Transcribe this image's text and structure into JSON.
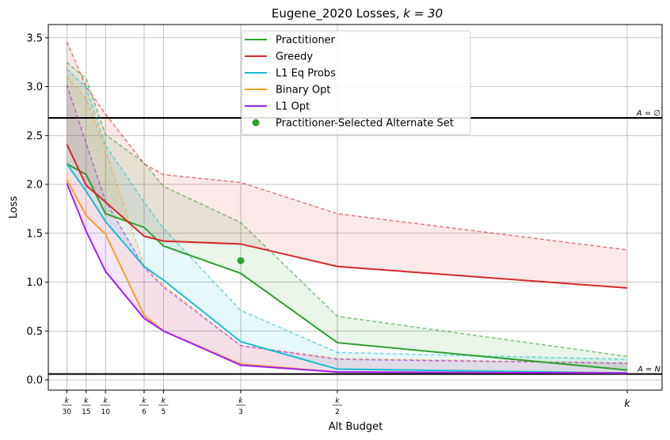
{
  "chart_data": {
    "type": "line",
    "title": "Eugene_2020 Losses, k = 30",
    "title_plain": "Eugene_2020 Losses, ",
    "title_math": "k = 30",
    "xlabel": "Alt Budget",
    "ylabel": "Loss",
    "ylim": [
      -0.1,
      3.6
    ],
    "grid": true,
    "legend_position": "top-center",
    "x_ticks": [
      {
        "x": 1,
        "label": "k/30"
      },
      {
        "x": 2,
        "label": "k/15"
      },
      {
        "x": 3,
        "label": "k/10"
      },
      {
        "x": 5,
        "label": "k/6"
      },
      {
        "x": 6,
        "label": "k/5"
      },
      {
        "x": 10,
        "label": "k/3"
      },
      {
        "x": 15,
        "label": "k/2"
      },
      {
        "x": 30,
        "label": "k"
      }
    ],
    "y_ticks": [
      0.0,
      0.5,
      1.0,
      1.5,
      2.0,
      2.5,
      3.0,
      3.5
    ],
    "y_tick_labels": [
      "0.0",
      "0.5",
      "1.0",
      "1.5",
      "2.0",
      "2.5",
      "3.0",
      "3.5"
    ],
    "reference_lines": [
      {
        "y": 2.68,
        "label": "A = ∅"
      },
      {
        "y": 0.06,
        "label": "A = N"
      }
    ],
    "series": [
      {
        "name": "Practitioner",
        "color": "#2ca02c",
        "x": [
          1,
          2,
          3,
          5,
          6,
          10,
          15,
          30
        ],
        "values": [
          2.21,
          2.1,
          1.7,
          1.56,
          1.37,
          1.09,
          0.38,
          0.1
        ],
        "upper": [
          3.25,
          3.08,
          2.51,
          2.22,
          1.98,
          1.61,
          0.65,
          0.24
        ]
      },
      {
        "name": "Greedy",
        "color": "#d62728",
        "x": [
          1,
          2,
          3,
          5,
          6,
          10,
          15,
          30
        ],
        "values": [
          2.41,
          1.99,
          1.82,
          1.47,
          1.42,
          1.39,
          1.16,
          0.94
        ],
        "upper": [
          3.46,
          3.0,
          2.72,
          2.21,
          2.1,
          2.02,
          1.7,
          1.33
        ]
      },
      {
        "name": "L1 Eq Probs",
        "color": "#17becf",
        "x": [
          1,
          2,
          3,
          5,
          6,
          10,
          15,
          30
        ],
        "values": [
          2.21,
          1.93,
          1.62,
          1.16,
          1.02,
          0.39,
          0.11,
          0.07
        ],
        "upper": [
          3.18,
          2.99,
          2.4,
          1.82,
          1.55,
          0.71,
          0.28,
          0.21
        ]
      },
      {
        "name": "Binary Opt",
        "color": "#ff9f1c",
        "x": [
          1,
          2,
          3,
          5,
          6,
          10,
          15,
          30
        ],
        "values": [
          2.05,
          1.68,
          1.49,
          0.66,
          0.5,
          0.16,
          0.08,
          0.07
        ],
        "upper": [
          3.1,
          2.88,
          2.35,
          1.17,
          0.97,
          0.35,
          0.22,
          0.17
        ]
      },
      {
        "name": "L1 Opt",
        "color": "#a020f0",
        "x": [
          1,
          2,
          3,
          5,
          6,
          10,
          15,
          30
        ],
        "values": [
          2.01,
          1.52,
          1.11,
          0.63,
          0.5,
          0.15,
          0.08,
          0.07
        ],
        "upper": [
          3.02,
          2.42,
          1.83,
          1.15,
          0.95,
          0.35,
          0.21,
          0.17
        ]
      }
    ],
    "scatter": {
      "name": "Practitioner-Selected Alternate Set",
      "color": "#2ca02c",
      "x": 10,
      "y": 1.22
    }
  }
}
